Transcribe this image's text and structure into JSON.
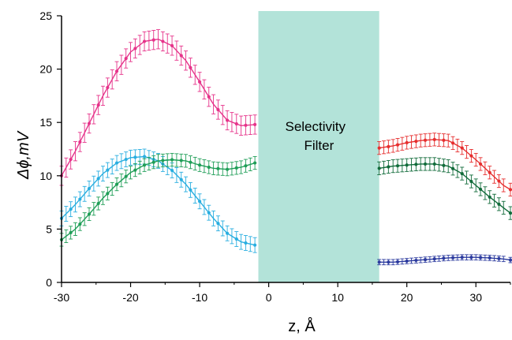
{
  "chart_data": {
    "type": "line",
    "xlabel": "z, Å",
    "ylabel": "Δϕ,mV",
    "xlim": [
      -30,
      35
    ],
    "ylim": [
      0,
      25
    ],
    "xticks": [
      -30,
      -20,
      -10,
      0,
      10,
      20,
      30
    ],
    "yticks": [
      0,
      5,
      10,
      15,
      20,
      25
    ],
    "grid": false,
    "legend": "none",
    "shaded_region": {
      "x": [
        -1.5,
        16
      ],
      "label_lines": [
        "Selectivity",
        "Filter"
      ],
      "color": "#b3e3d9"
    },
    "series": [
      {
        "color": "#e6338a",
        "err": 0.9,
        "left": {
          "x": [
            -30,
            -28,
            -26,
            -24,
            -22,
            -20,
            -18,
            -16,
            -14,
            -12,
            -10,
            -8,
            -6,
            -4,
            -2
          ],
          "y": [
            10.0,
            12.3,
            14.9,
            17.5,
            19.8,
            21.6,
            22.6,
            22.8,
            22.2,
            20.8,
            18.8,
            16.7,
            15.2,
            14.7,
            14.8
          ]
        },
        "right": null
      },
      {
        "color": "#29aee0",
        "err": 0.7,
        "left": {
          "x": [
            -30,
            -28,
            -26,
            -24,
            -22,
            -20,
            -18,
            -16,
            -14,
            -12,
            -10,
            -8,
            -6,
            -4,
            -2
          ],
          "y": [
            6.0,
            7.3,
            8.8,
            10.2,
            11.2,
            11.7,
            11.8,
            11.4,
            10.5,
            9.2,
            7.6,
            6.0,
            4.6,
            3.8,
            3.5
          ]
        },
        "right": null
      },
      {
        "color": "#1f9e57",
        "err": 0.6,
        "left": {
          "x": [
            -30,
            -28,
            -26,
            -24,
            -22,
            -20,
            -18,
            -16,
            -14,
            -12,
            -10,
            -8,
            -6,
            -4,
            -2
          ],
          "y": [
            4.0,
            5.0,
            6.4,
            7.9,
            9.2,
            10.3,
            11.0,
            11.4,
            11.5,
            11.4,
            11.0,
            10.7,
            10.6,
            10.8,
            11.2
          ]
        },
        "right": null
      },
      {
        "color": "#e62e2e",
        "err": 0.6,
        "left": null,
        "right": {
          "x": [
            16,
            18,
            20,
            22,
            24,
            26,
            28,
            30,
            32,
            34,
            35
          ],
          "y": [
            12.6,
            12.8,
            13.1,
            13.3,
            13.4,
            13.3,
            12.6,
            11.5,
            10.3,
            9.1,
            8.7
          ]
        }
      },
      {
        "color": "#116b3a",
        "err": 0.6,
        "left": null,
        "right": {
          "x": [
            16,
            18,
            20,
            22,
            24,
            26,
            28,
            30,
            32,
            34,
            35
          ],
          "y": [
            10.7,
            10.9,
            11.0,
            11.1,
            11.1,
            10.9,
            10.2,
            9.1,
            8.0,
            7.0,
            6.5
          ]
        }
      },
      {
        "color": "#2b3a9e",
        "err": 0.25,
        "left": null,
        "right": {
          "x": [
            16,
            18,
            20,
            22,
            24,
            26,
            28,
            30,
            32,
            34,
            35
          ],
          "y": [
            1.9,
            1.9,
            2.0,
            2.1,
            2.2,
            2.3,
            2.35,
            2.35,
            2.3,
            2.2,
            2.1
          ]
        }
      }
    ]
  }
}
